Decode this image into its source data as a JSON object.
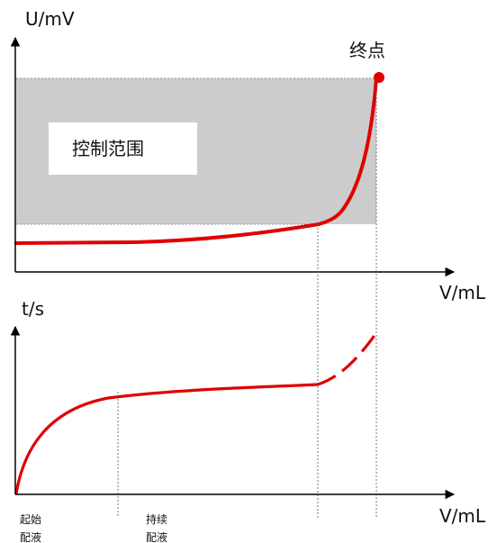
{
  "top_chart": {
    "y_axis_label": "U/mV",
    "x_axis_label": "V/mL",
    "endpoint_label": "终点",
    "control_range_label": "控制范围"
  },
  "bottom_chart": {
    "y_axis_label": "t/s",
    "x_axis_label": "V/mL",
    "phase_start_line1": "起始",
    "phase_start_line2": "配液",
    "phase_continuous_line1": "持续",
    "phase_continuous_line2": "配液"
  },
  "colors": {
    "curve": "#e00000",
    "control_range_fill": "#cccccc",
    "axis": "#000000",
    "guide_line": "#666666"
  }
}
